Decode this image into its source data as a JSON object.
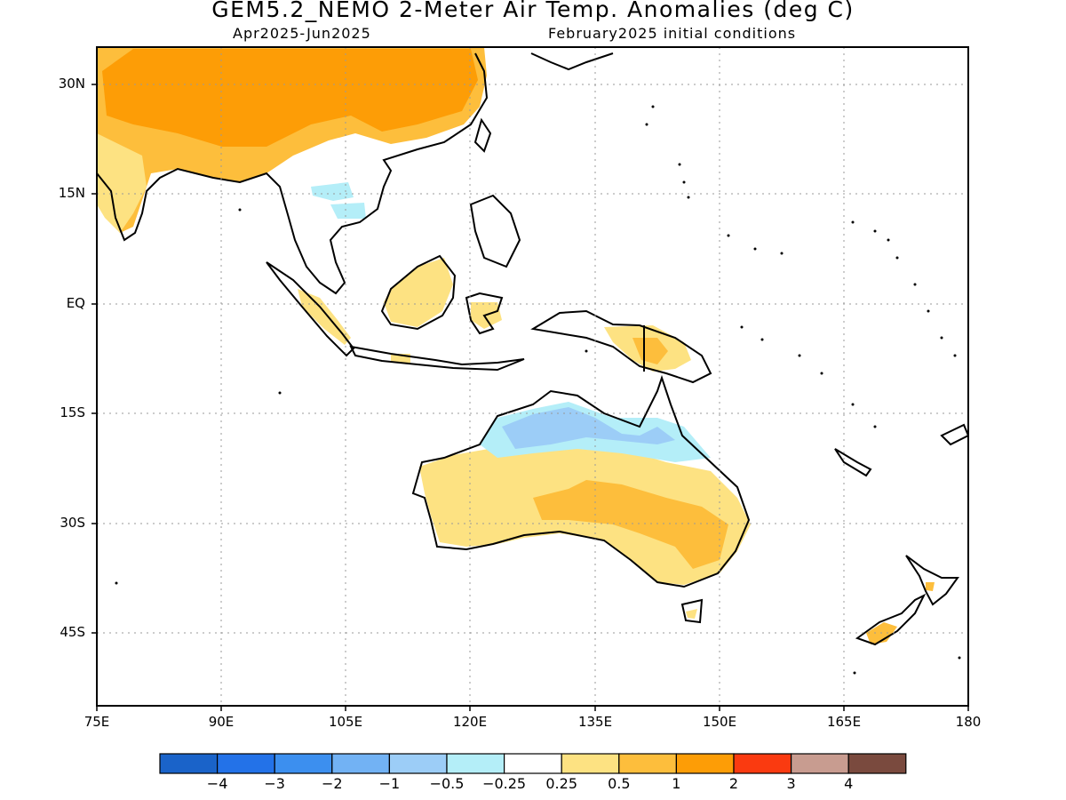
{
  "title": "GEM5.2_NEMO 2-Meter Air Temp. Anomalies (deg C)",
  "subtitle_left": "Apr2025-Jun2025",
  "subtitle_right": "February2025 initial conditions",
  "map": {
    "lat_labels": [
      "30N",
      "15N",
      "EQ",
      "15S",
      "30S",
      "45S"
    ],
    "lon_labels": [
      "75E",
      "90E",
      "105E",
      "120E",
      "135E",
      "150E",
      "165E",
      "180"
    ],
    "extent": {
      "lon": [
        75,
        180
      ],
      "lat": [
        -55,
        35
      ]
    }
  },
  "colorbar": {
    "colors": [
      "#1a63c9",
      "#2372e8",
      "#3c8fef",
      "#72b2f4",
      "#9ccdf7",
      "#b4eef8",
      "#ffffff",
      "#fde282",
      "#fdbe3c",
      "#fd9d06",
      "#fa3a10",
      "#c89c90",
      "#7a4a3e"
    ],
    "labels": [
      "-4",
      "-3",
      "-2",
      "-1",
      "-0.5",
      "-0.25",
      "0.25",
      "0.5",
      "1",
      "2",
      "3",
      "4"
    ]
  }
}
